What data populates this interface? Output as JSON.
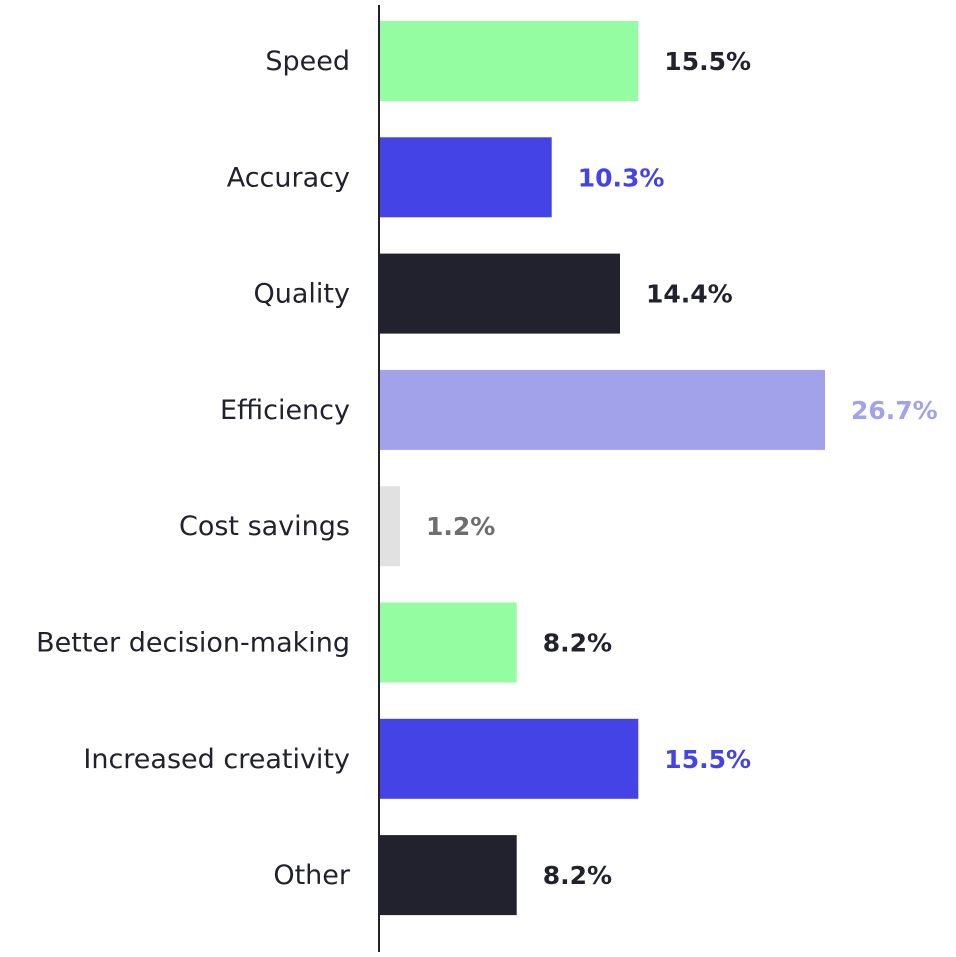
{
  "chart_data": {
    "type": "bar",
    "orientation": "horizontal",
    "title": "",
    "xlabel": "",
    "ylabel": "",
    "unit": "%",
    "grid": false,
    "legend": "none",
    "categories": [
      "Speed",
      "Accuracy",
      "Quality",
      "Efficiency",
      "Cost savings",
      "Better decision-making",
      "Increased creativity",
      "Other"
    ],
    "values": [
      15.5,
      10.3,
      14.4,
      26.7,
      1.2,
      8.2,
      15.5,
      8.2
    ],
    "value_labels": [
      "15.5%",
      "10.3%",
      "14.4%",
      "26.7%",
      "1.2%",
      "8.2%",
      "15.5%",
      "8.2%"
    ],
    "bar_colors": [
      "#94fda1",
      "#4343e6",
      "#22222f",
      "#a2a2ea",
      "#e1e1e1",
      "#94fda1",
      "#4343e6",
      "#22222f"
    ],
    "label_colors": [
      "#22222f",
      "#4343e6",
      "#22222f",
      "#a2a2ea",
      "#6e6e6e",
      "#22222f",
      "#4343e6",
      "#22222f"
    ],
    "axis_color": "#22222f",
    "xlim": [
      0,
      26.7
    ]
  }
}
